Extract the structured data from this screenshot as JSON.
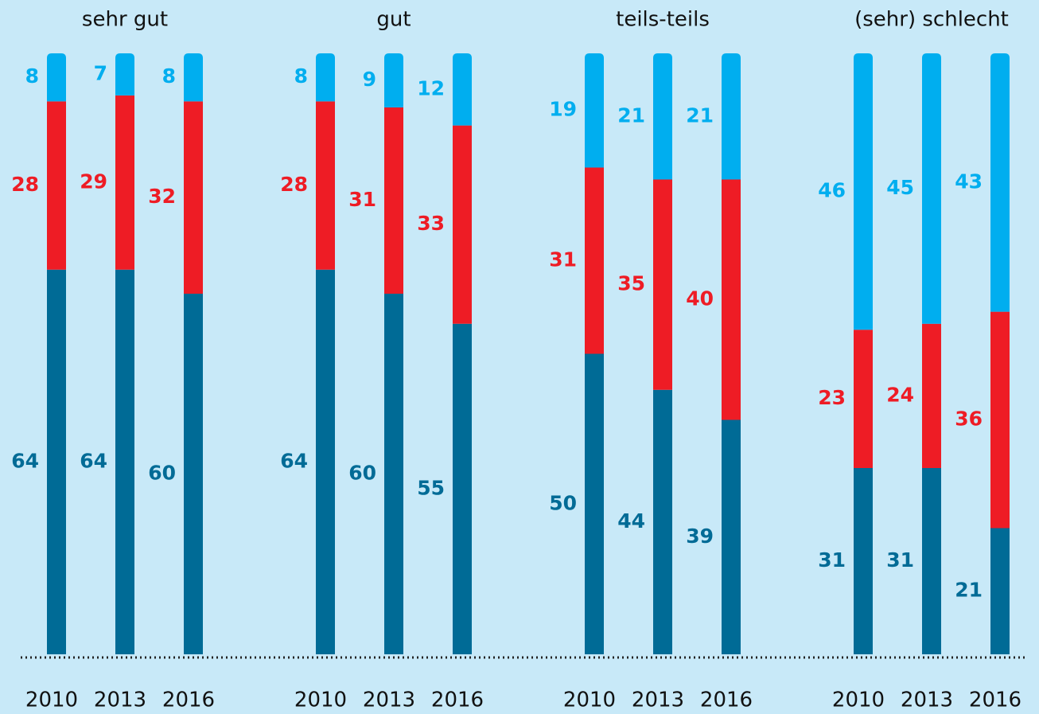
{
  "chart_data": [
    {
      "type": "bar",
      "stacked": true,
      "title": "sehr gut",
      "categories": [
        "2010",
        "2013",
        "2016"
      ],
      "ylim": [
        0,
        100
      ],
      "series": [
        {
          "color": "#006b96",
          "values": [
            64,
            64,
            60
          ]
        },
        {
          "color": "#ee1c25",
          "values": [
            28,
            29,
            32
          ]
        },
        {
          "color": "#00aeef",
          "values": [
            8,
            7,
            8
          ]
        }
      ]
    },
    {
      "type": "bar",
      "stacked": true,
      "title": "gut",
      "categories": [
        "2010",
        "2013",
        "2016"
      ],
      "ylim": [
        0,
        100
      ],
      "series": [
        {
          "color": "#006b96",
          "values": [
            64,
            60,
            55
          ]
        },
        {
          "color": "#ee1c25",
          "values": [
            28,
            31,
            33
          ]
        },
        {
          "color": "#00aeef",
          "values": [
            8,
            9,
            12
          ]
        }
      ]
    },
    {
      "type": "bar",
      "stacked": true,
      "title": "teils-teils",
      "categories": [
        "2010",
        "2013",
        "2016"
      ],
      "ylim": [
        0,
        100
      ],
      "series": [
        {
          "color": "#006b96",
          "values": [
            50,
            44,
            39
          ]
        },
        {
          "color": "#ee1c25",
          "values": [
            31,
            35,
            40
          ]
        },
        {
          "color": "#00aeef",
          "values": [
            19,
            21,
            21
          ]
        }
      ]
    },
    {
      "type": "bar",
      "stacked": true,
      "title": "(sehr) schlecht",
      "categories": [
        "2010",
        "2013",
        "2016"
      ],
      "ylim": [
        0,
        100
      ],
      "series": [
        {
          "color": "#006b96",
          "values": [
            31,
            31,
            21
          ]
        },
        {
          "color": "#ee1c25",
          "values": [
            23,
            24,
            36
          ]
        },
        {
          "color": "#00aeef",
          "values": [
            46,
            45,
            43
          ]
        }
      ]
    }
  ]
}
